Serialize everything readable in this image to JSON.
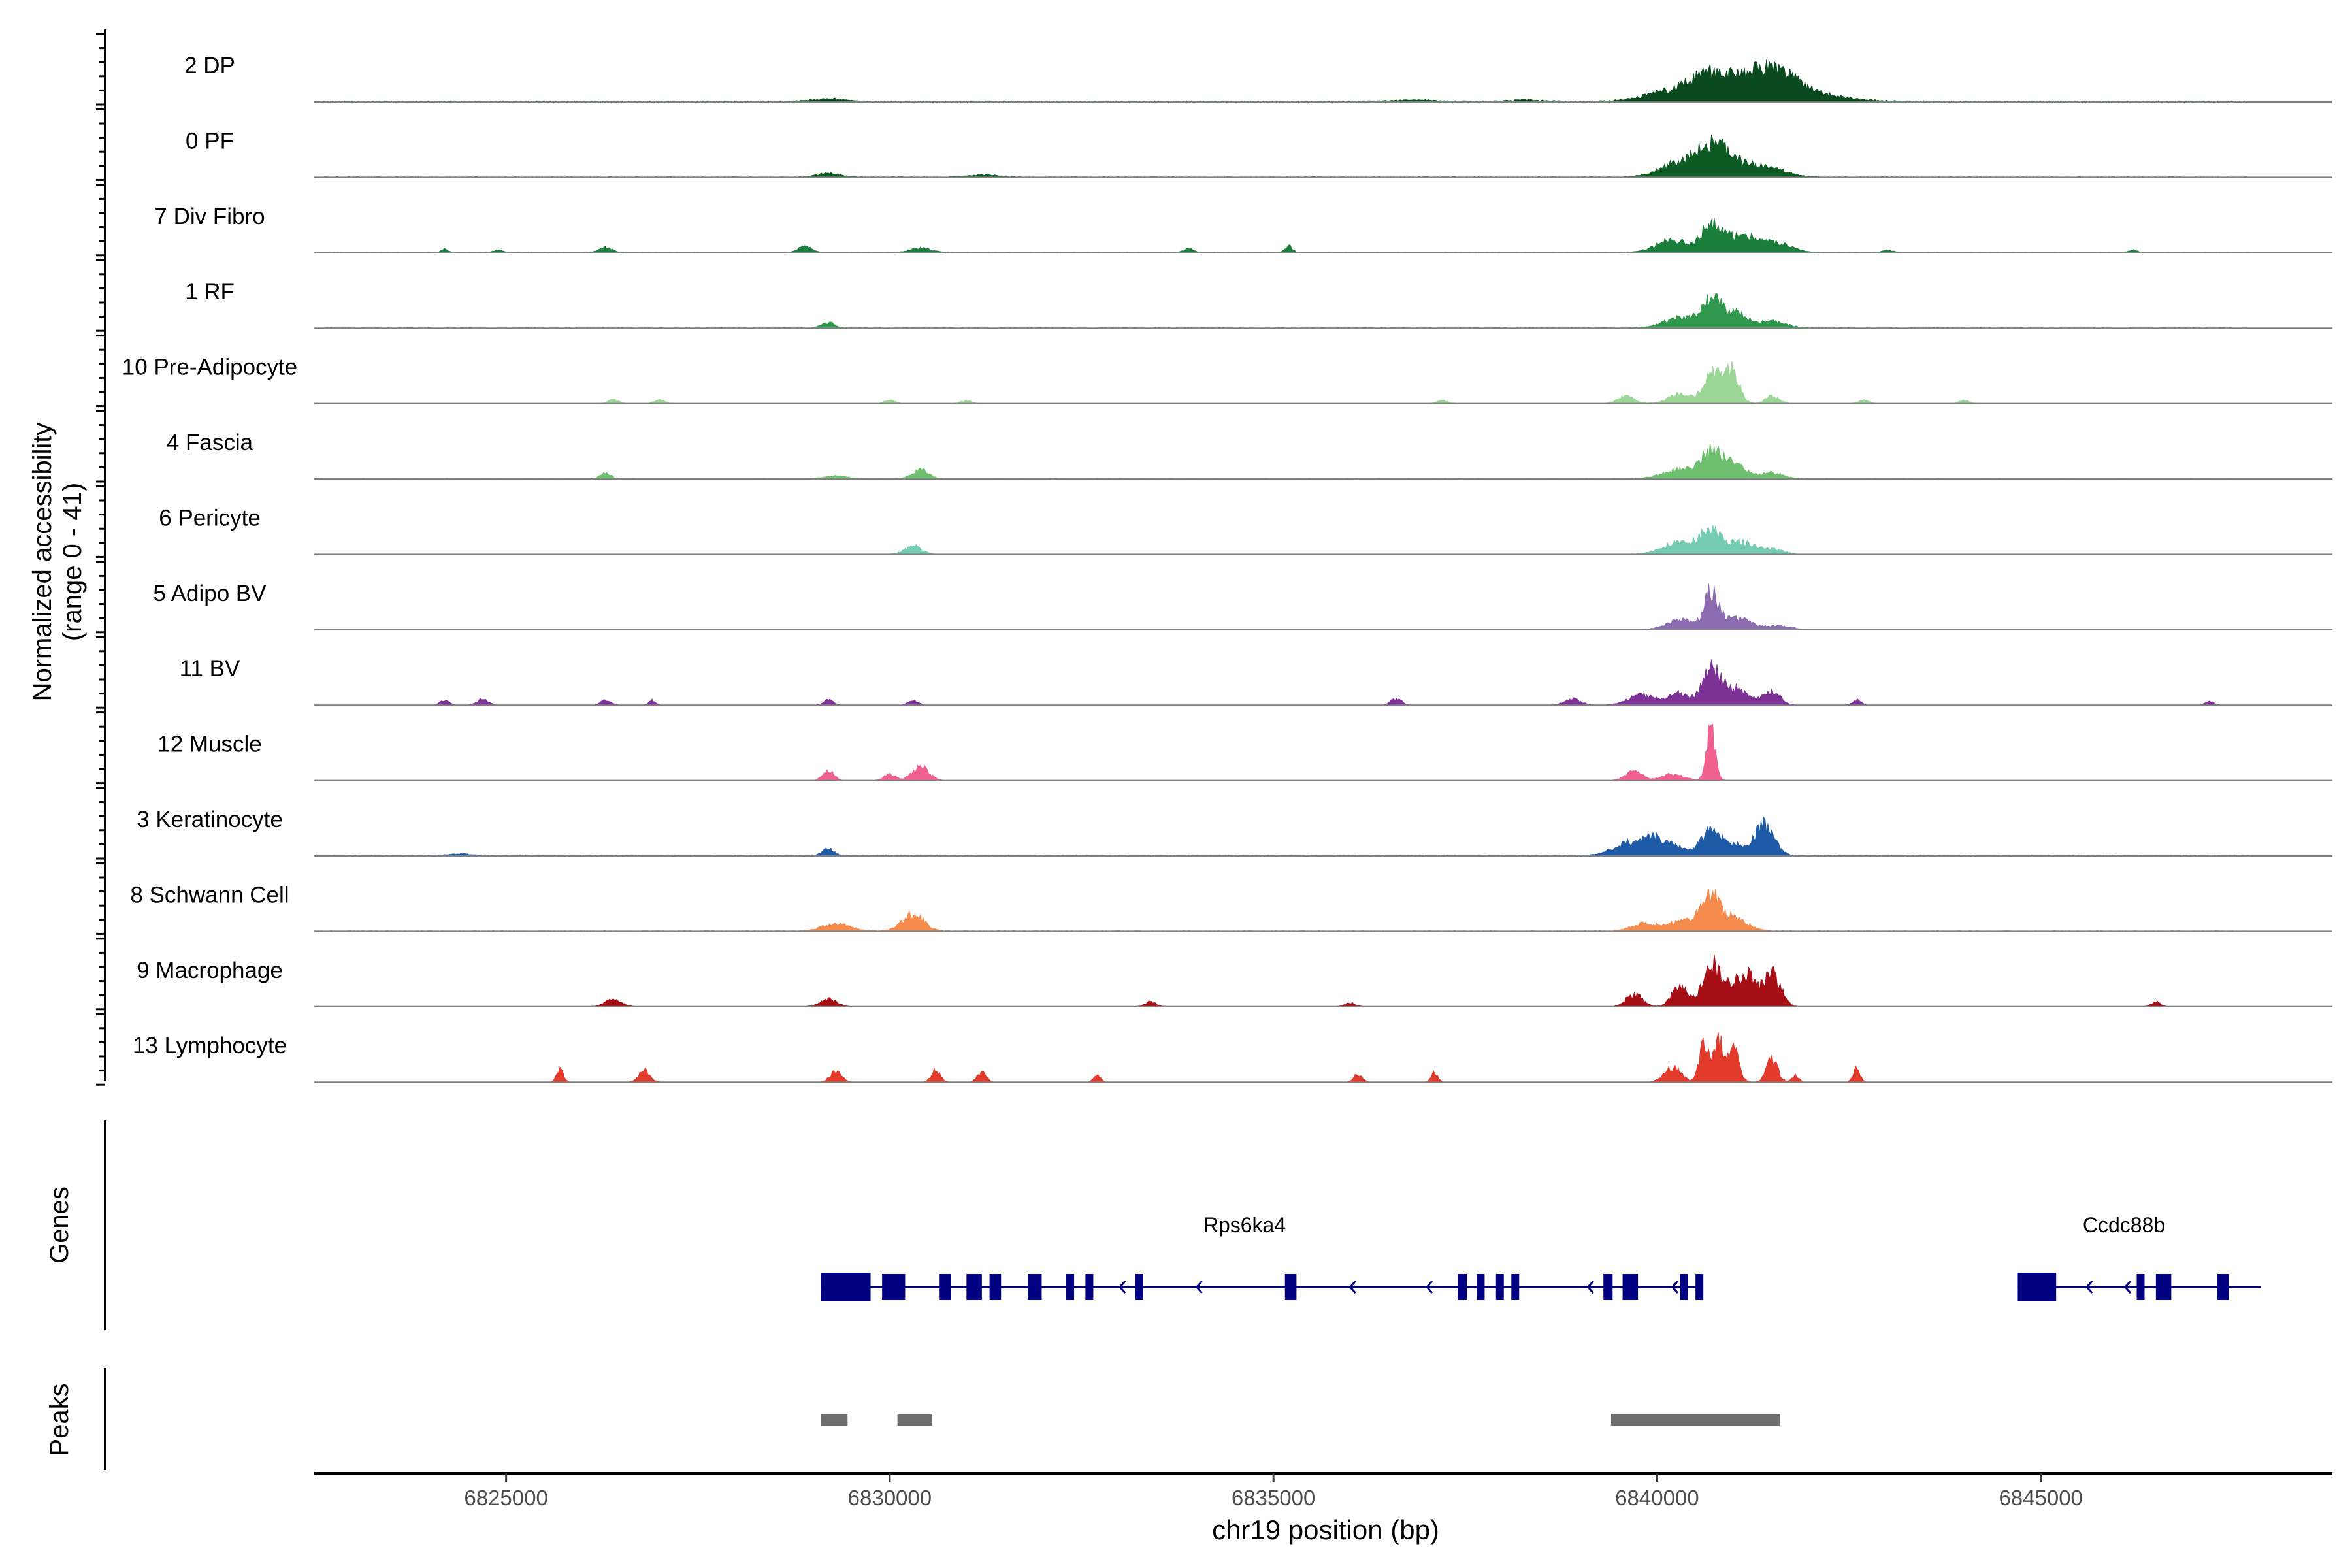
{
  "chart_data": {
    "type": "area",
    "region": {
      "chrom": "chr19",
      "start": 6822500,
      "end": 6848800
    },
    "ylabel": "Normalized accessibility",
    "ylabel_range": "(range 0 - 41)",
    "xlabel": "chr19 position (bp)",
    "x_ticks": [
      6825000,
      6830000,
      6835000,
      6840000,
      6845000
    ],
    "x_tick_labels": [
      "6825000",
      "6830000",
      "6835000",
      "6840000",
      "6845000"
    ],
    "y_range": [
      0,
      41
    ],
    "tracks": [
      {
        "name": "2 DP",
        "color": "#0b4a1f",
        "peaks": [
          [
            6841300,
            8.5,
            900
          ],
          [
            6840700,
            6.5,
            300
          ],
          [
            6840200,
            3.2,
            500
          ],
          [
            6841400,
            5,
            300
          ],
          [
            6841700,
            3,
            250
          ],
          [
            6829200,
            1.0,
            300
          ],
          [
            6836800,
            0.6,
            400
          ],
          [
            6838300,
            0.6,
            300
          ]
        ],
        "noise": 0.35
      },
      {
        "name": "0 PF",
        "color": "#0e5a23",
        "peaks": [
          [
            6840700,
            10,
            250
          ],
          [
            6840300,
            6,
            350
          ],
          [
            6841000,
            6,
            350
          ],
          [
            6841500,
            3,
            300
          ],
          [
            6829200,
            1.6,
            200
          ],
          [
            6831200,
            0.9,
            250
          ]
        ],
        "noise": 0.2
      },
      {
        "name": "7 Div Fibro",
        "color": "#1a7d3a",
        "peaks": [
          [
            6840700,
            10,
            180
          ],
          [
            6841100,
            7,
            350
          ],
          [
            6840200,
            5,
            300
          ],
          [
            6841600,
            3,
            250
          ],
          [
            6828900,
            2.8,
            120
          ],
          [
            6830400,
            1.8,
            200
          ],
          [
            6826300,
            2.2,
            120
          ],
          [
            6835200,
            2.6,
            70
          ],
          [
            6833900,
            1.6,
            90
          ],
          [
            6843000,
            1.2,
            90
          ],
          [
            6846200,
            1.2,
            70
          ],
          [
            6824200,
            1.4,
            60
          ],
          [
            6824900,
            1.2,
            80
          ]
        ],
        "noise": 0.15
      },
      {
        "name": "1 RF",
        "color": "#31994e",
        "peaks": [
          [
            6840700,
            10,
            180
          ],
          [
            6841000,
            6,
            250
          ],
          [
            6840300,
            4,
            300
          ],
          [
            6841500,
            2.5,
            250
          ],
          [
            6829200,
            2.2,
            120
          ]
        ],
        "noise": 0.2
      },
      {
        "name": "10 Pre-Adipocyte",
        "color": "#9bd697",
        "peaks": [
          [
            6840700,
            11,
            150
          ],
          [
            6840900,
            8,
            150
          ],
          [
            6841000,
            8,
            120
          ],
          [
            6840300,
            4,
            200
          ],
          [
            6841500,
            3,
            120
          ],
          [
            6839600,
            3,
            150
          ],
          [
            6842700,
            1.5,
            90
          ],
          [
            6826400,
            1.5,
            90
          ],
          [
            6827000,
            1.5,
            90
          ],
          [
            6830000,
            1.2,
            90
          ],
          [
            6831000,
            1.2,
            90
          ],
          [
            6837200,
            1.2,
            90
          ],
          [
            6844000,
            1.2,
            90
          ]
        ],
        "noise": 0.1
      },
      {
        "name": "4 Fascia",
        "color": "#6fbf70",
        "peaks": [
          [
            6840700,
            11,
            180
          ],
          [
            6841000,
            7,
            200
          ],
          [
            6840300,
            4,
            300
          ],
          [
            6841500,
            2.5,
            200
          ],
          [
            6830400,
            3.5,
            150
          ],
          [
            6826300,
            2.5,
            90
          ],
          [
            6829300,
            1.2,
            200
          ]
        ],
        "noise": 0.15
      },
      {
        "name": "6 Pericyte",
        "color": "#76cbb4",
        "peaks": [
          [
            6840700,
            10,
            180
          ],
          [
            6841100,
            5,
            250
          ],
          [
            6840300,
            5,
            300
          ],
          [
            6830300,
            3.5,
            150
          ],
          [
            6841500,
            2,
            200
          ]
        ],
        "noise": 0.1
      },
      {
        "name": "5 Adipo BV",
        "color": "#8c6bb1",
        "peaks": [
          [
            6840700,
            14,
            120
          ],
          [
            6841000,
            5,
            300
          ],
          [
            6840300,
            4,
            250
          ],
          [
            6841600,
            1.5,
            200
          ]
        ],
        "noise": 0.1
      },
      {
        "name": "11 BV",
        "color": "#7b3294",
        "peaks": [
          [
            6840700,
            14,
            150
          ],
          [
            6841500,
            6,
            150
          ],
          [
            6840300,
            5,
            200
          ],
          [
            6841000,
            7,
            250
          ],
          [
            6839800,
            4,
            250
          ],
          [
            6842600,
            2,
            80
          ],
          [
            6824200,
            2,
            80
          ],
          [
            6824700,
            2.5,
            100
          ],
          [
            6826300,
            2,
            90
          ],
          [
            6829200,
            2,
            90
          ],
          [
            6830300,
            2,
            90
          ],
          [
            6836600,
            2.5,
            100
          ],
          [
            6838900,
            2.5,
            150
          ],
          [
            6847200,
            1.5,
            80
          ],
          [
            6826900,
            2,
            60
          ]
        ],
        "noise": 0.05
      },
      {
        "name": "12 Muscle",
        "color": "#f0608f",
        "peaks": [
          [
            6840700,
            21,
            80
          ],
          [
            6839700,
            4,
            150
          ],
          [
            6840200,
            2.5,
            200
          ],
          [
            6829200,
            4,
            100
          ],
          [
            6830400,
            6,
            150
          ],
          [
            6830000,
            3,
            100
          ]
        ],
        "noise": 0.05
      },
      {
        "name": "3 Keratinocyte",
        "color": "#1f5aa6",
        "peaks": [
          [
            6841400,
            13,
            180
          ],
          [
            6840700,
            10,
            180
          ],
          [
            6840000,
            7,
            350
          ],
          [
            6839600,
            3.5,
            300
          ],
          [
            6841000,
            4,
            200
          ],
          [
            6829200,
            3,
            100
          ],
          [
            6824400,
            0.8,
            200
          ]
        ],
        "noise": 0.2
      },
      {
        "name": "8 Schwann Cell",
        "color": "#f58b4c",
        "peaks": [
          [
            6840700,
            13,
            180
          ],
          [
            6841000,
            5,
            250
          ],
          [
            6840300,
            4,
            300
          ],
          [
            6830300,
            7,
            200
          ],
          [
            6829300,
            3,
            250
          ],
          [
            6839800,
            3,
            200
          ]
        ],
        "noise": 0.2
      },
      {
        "name": "9 Macrophage",
        "color": "#a50f15",
        "peaks": [
          [
            6840700,
            17,
            150
          ],
          [
            6841500,
            14,
            150
          ],
          [
            6841200,
            10,
            150
          ],
          [
            6840300,
            8,
            150
          ],
          [
            6839700,
            5,
            150
          ],
          [
            6841000,
            9,
            200
          ],
          [
            6829200,
            3,
            150
          ],
          [
            6826400,
            3,
            150
          ],
          [
            6833400,
            2,
            100
          ],
          [
            6846500,
            2,
            80
          ],
          [
            6836000,
            1.5,
            100
          ]
        ],
        "noise": 0.1
      },
      {
        "name": "13 Lymphocyte",
        "color": "#e23a2a",
        "peaks": [
          [
            6840800,
            16,
            120
          ],
          [
            6841000,
            12,
            100
          ],
          [
            6840600,
            14,
            80
          ],
          [
            6841500,
            10,
            100
          ],
          [
            6840200,
            6,
            150
          ],
          [
            6842600,
            6,
            60
          ],
          [
            6825700,
            6,
            60
          ],
          [
            6826800,
            5,
            100
          ],
          [
            6829300,
            5,
            100
          ],
          [
            6830600,
            5,
            80
          ],
          [
            6831200,
            4,
            80
          ],
          [
            6832700,
            3,
            60
          ],
          [
            6836100,
            3,
            80
          ],
          [
            6837100,
            4,
            60
          ],
          [
            6841800,
            3,
            60
          ]
        ],
        "noise": 0.05
      }
    ],
    "genes": [
      {
        "name": "Rps6ka4",
        "start": 6829100,
        "end": 6840600,
        "strand": "-",
        "exons": [
          [
            6829100,
            6829750
          ],
          [
            6829900,
            6830200
          ],
          [
            6830650,
            6830800
          ],
          [
            6831000,
            6831200
          ],
          [
            6831300,
            6831450
          ],
          [
            6831800,
            6831980
          ],
          [
            6832300,
            6832400
          ],
          [
            6832550,
            6832650
          ],
          [
            6833200,
            6833300
          ],
          [
            6835150,
            6835300
          ],
          [
            6837400,
            6837520
          ],
          [
            6837650,
            6837750
          ],
          [
            6837900,
            6837980
          ],
          [
            6838100,
            6838200
          ],
          [
            6839300,
            6839420
          ],
          [
            6839550,
            6839750
          ],
          [
            6840300,
            6840400
          ],
          [
            6840500,
            6840600
          ]
        ],
        "arrows": [
          6833000,
          6834000,
          6836000,
          6837000,
          6839100,
          6840200
        ]
      },
      {
        "name": "Ccdc88b",
        "start": 6844700,
        "end": 6847700,
        "strand": "-",
        "exons": [
          [
            6844700,
            6845200
          ],
          [
            6846250,
            6846350
          ],
          [
            6846500,
            6846700
          ],
          [
            6847300,
            6847450
          ]
        ],
        "arrows": [
          6845600,
          6846100
        ]
      }
    ],
    "peaks": [
      [
        6829100,
        6829450
      ],
      [
        6830100,
        6830550
      ],
      [
        6839400,
        6841600
      ]
    ],
    "panel_labels": {
      "genes": "Genes",
      "peaks": "Peaks"
    }
  }
}
